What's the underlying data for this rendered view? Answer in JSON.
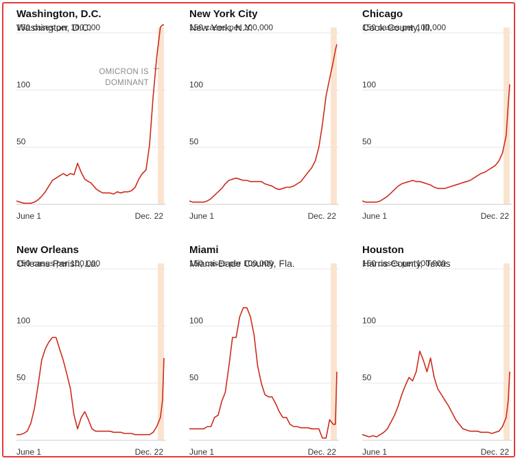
{
  "colors": {
    "line": "#cc2a1a",
    "band": "#fbe4cf",
    "grid": "#e6e6e6",
    "baseline": "#cccccc",
    "frame": "#e53935"
  },
  "chart_data": [
    {
      "type": "line",
      "title": "Washington, D.C.",
      "subtitle": "Washington, D.C.",
      "unit_label": "150 cases per 100,000",
      "y_ticks": [
        100,
        50
      ],
      "ylim": [
        0,
        157
      ],
      "x_labels": {
        "start": "June 1",
        "end": "Dec. 22"
      },
      "annotation": [
        "OMICRON IS",
        "DOMINANT"
      ],
      "shaded_band": "Omicron dominant period (Dec. 16 – Dec. 22)",
      "series": [
        {
          "x": [
            0,
            5,
            10,
            15,
            20,
            25,
            30,
            35,
            40,
            45,
            50,
            55,
            60,
            65,
            70,
            75,
            80,
            85,
            90,
            95,
            100,
            103,
            106,
            110,
            114,
            117,
            120,
            125,
            130,
            135,
            140,
            145,
            150,
            155,
            160,
            165,
            170,
            175,
            180,
            185,
            190,
            195,
            200,
            203,
            205
          ],
          "y": [
            3,
            2,
            1,
            1,
            1,
            2,
            4,
            7,
            11,
            16,
            21,
            23,
            25,
            27,
            25,
            27,
            26,
            36,
            28,
            22,
            20,
            19,
            17,
            14,
            12,
            11,
            10,
            10,
            10,
            9,
            11,
            10,
            11,
            11,
            12,
            15,
            22,
            27,
            30,
            52,
            95,
            129,
            155,
            157,
            157
          ]
        }
      ]
    },
    {
      "type": "line",
      "title": "New York City",
      "subtitle": "New York, N.Y.",
      "unit_label": "150 cases per 100,000",
      "y_ticks": [
        100,
        50
      ],
      "ylim": [
        0,
        157
      ],
      "x_labels": {
        "start": "June 1",
        "end": "Dec. 22"
      },
      "shaded_band": "Omicron dominant period (Dec. 16 – Dec. 22)",
      "series": [
        {
          "x": [
            0,
            5,
            10,
            15,
            20,
            25,
            30,
            35,
            40,
            45,
            50,
            55,
            60,
            65,
            70,
            75,
            80,
            85,
            90,
            95,
            100,
            105,
            110,
            115,
            120,
            125,
            130,
            135,
            140,
            145,
            150,
            155,
            160,
            165,
            170,
            175,
            180,
            185,
            190,
            195,
            200,
            203,
            205
          ],
          "y": [
            3,
            2,
            2,
            2,
            2,
            3,
            5,
            8,
            11,
            14,
            18,
            21,
            22,
            23,
            22,
            21,
            21,
            20,
            20,
            20,
            20,
            18,
            17,
            16,
            14,
            13,
            14,
            15,
            15,
            16,
            18,
            20,
            24,
            28,
            32,
            38,
            50,
            70,
            95,
            110,
            125,
            135,
            140
          ]
        }
      ]
    },
    {
      "type": "line",
      "title": "Chicago",
      "subtitle": "Cook County, Ill.",
      "unit_label": "150 cases per 100,000",
      "y_ticks": [
        100,
        50
      ],
      "ylim": [
        0,
        157
      ],
      "x_labels": {
        "start": "June 1",
        "end": "Dec. 22"
      },
      "shaded_band": "Omicron dominant period (Dec. 16 – Dec. 22)",
      "series": [
        {
          "x": [
            0,
            5,
            10,
            15,
            20,
            25,
            30,
            35,
            40,
            45,
            50,
            55,
            60,
            65,
            70,
            75,
            80,
            85,
            90,
            95,
            100,
            105,
            110,
            115,
            120,
            125,
            130,
            135,
            140,
            145,
            150,
            155,
            160,
            165,
            170,
            175,
            180,
            185,
            190,
            195,
            200,
            203,
            205
          ],
          "y": [
            3,
            2,
            2,
            2,
            2,
            3,
            5,
            7,
            10,
            13,
            16,
            18,
            19,
            20,
            21,
            20,
            20,
            19,
            18,
            17,
            15,
            14,
            14,
            14,
            15,
            16,
            17,
            18,
            19,
            20,
            21,
            23,
            25,
            27,
            28,
            30,
            32,
            34,
            38,
            45,
            60,
            88,
            105
          ]
        }
      ]
    },
    {
      "type": "line",
      "title": "New Orleans",
      "subtitle": "Orleans Parish, La.",
      "unit_label": "150 cases per 100,000",
      "y_ticks": [
        100,
        50
      ],
      "ylim": [
        0,
        157
      ],
      "x_labels": {
        "start": "June 1",
        "end": "Dec. 22"
      },
      "shaded_band": "Omicron dominant period (Dec. 16 – Dec. 22)",
      "series": [
        {
          "x": [
            0,
            5,
            10,
            15,
            20,
            25,
            30,
            35,
            40,
            45,
            50,
            55,
            60,
            65,
            70,
            75,
            80,
            85,
            90,
            95,
            100,
            105,
            110,
            115,
            120,
            125,
            130,
            135,
            140,
            145,
            150,
            155,
            160,
            165,
            170,
            175,
            180,
            185,
            190,
            195,
            200,
            203,
            205
          ],
          "y": [
            5,
            5,
            6,
            8,
            15,
            28,
            48,
            70,
            80,
            86,
            90,
            90,
            80,
            70,
            58,
            45,
            22,
            10,
            20,
            25,
            18,
            10,
            8,
            8,
            8,
            8,
            8,
            7,
            7,
            7,
            6,
            6,
            6,
            5,
            5,
            5,
            5,
            5,
            7,
            12,
            20,
            35,
            72
          ]
        }
      ]
    },
    {
      "type": "line",
      "title": "Miami",
      "subtitle": "Miami-Dade County, Fla.",
      "unit_label": "150 cases per 100,000",
      "y_ticks": [
        100,
        50
      ],
      "ylim": [
        0,
        157
      ],
      "x_labels": {
        "start": "June 1",
        "end": "Dec. 22"
      },
      "shaded_band": "Omicron dominant period (Dec. 16 – Dec. 22)",
      "series": [
        {
          "x": [
            0,
            5,
            10,
            15,
            20,
            25,
            30,
            35,
            40,
            45,
            50,
            55,
            60,
            65,
            70,
            75,
            80,
            85,
            90,
            95,
            100,
            105,
            110,
            115,
            120,
            125,
            130,
            135,
            140,
            145,
            150,
            155,
            160,
            165,
            170,
            175,
            180,
            185,
            190,
            195,
            200,
            203,
            205
          ],
          "y": [
            10,
            10,
            10,
            10,
            10,
            12,
            12,
            20,
            22,
            34,
            42,
            65,
            90,
            90,
            108,
            116,
            116,
            108,
            92,
            65,
            50,
            40,
            38,
            38,
            32,
            25,
            20,
            20,
            14,
            12,
            12,
            11,
            11,
            11,
            10,
            10,
            10,
            2,
            2,
            18,
            14,
            14,
            60
          ]
        }
      ]
    },
    {
      "type": "line",
      "title": "Houston",
      "subtitle": "Harris County, Texas",
      "unit_label": "150 cases per 100,000",
      "y_ticks": [
        100,
        50
      ],
      "ylim": [
        0,
        157
      ],
      "x_labels": {
        "start": "June 1",
        "end": "Dec. 22"
      },
      "shaded_band": "Omicron dominant period (Dec. 16 – Dec. 22)",
      "series": [
        {
          "x": [
            0,
            5,
            10,
            15,
            20,
            25,
            30,
            35,
            40,
            45,
            50,
            55,
            60,
            65,
            70,
            75,
            80,
            85,
            90,
            95,
            100,
            105,
            110,
            115,
            120,
            125,
            130,
            135,
            140,
            145,
            150,
            155,
            160,
            165,
            170,
            175,
            180,
            185,
            190,
            195,
            200,
            203,
            205
          ],
          "y": [
            5,
            4,
            3,
            4,
            3,
            5,
            7,
            10,
            16,
            22,
            30,
            40,
            48,
            55,
            52,
            60,
            78,
            70,
            60,
            72,
            55,
            45,
            40,
            35,
            30,
            24,
            18,
            14,
            10,
            9,
            8,
            8,
            8,
            7,
            7,
            7,
            6,
            7,
            8,
            12,
            20,
            35,
            60
          ]
        }
      ]
    }
  ]
}
